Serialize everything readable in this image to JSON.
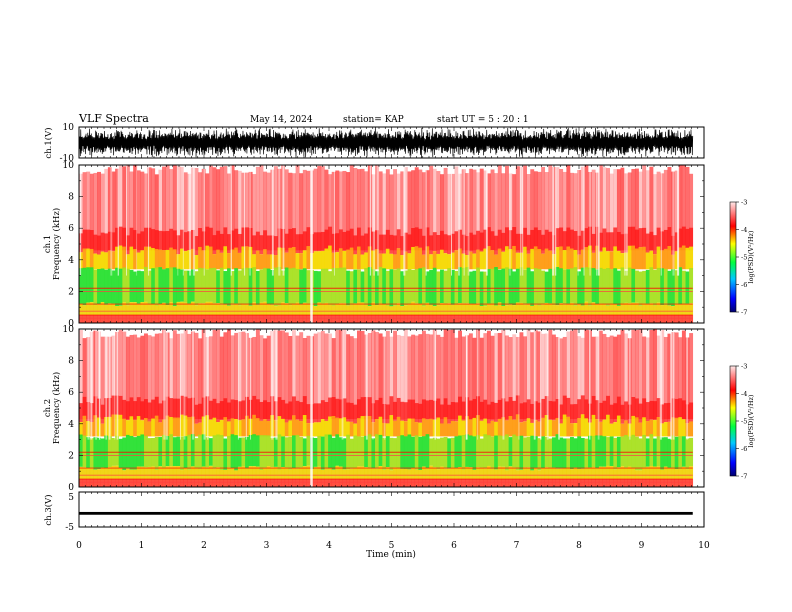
{
  "header": {
    "title": "VLF Spectra",
    "date": "May 14, 2024",
    "station": "station= KAP",
    "start": "start  UT  =   5  : 20 : 1"
  },
  "chart_data": [
    {
      "type": "line",
      "name": "ch1-waveform",
      "ylabel": "ch.1(V)",
      "ylim": [
        -10,
        10
      ],
      "yticks": [
        "10",
        "-10"
      ],
      "xlim": [
        0,
        10
      ]
    },
    {
      "type": "heatmap",
      "name": "ch1-spectrogram",
      "ylabel_top": "ch.1",
      "ylabel": "Frequency  (kHz)",
      "ylim": [
        0,
        10
      ],
      "yticks": [
        "0",
        "2",
        "4",
        "6",
        "8",
        "10"
      ],
      "xlim": [
        0,
        10
      ],
      "data_end_min": 9.82,
      "colorbar": {
        "label": "log(PSD)(V²/Hz)",
        "range": [
          -7,
          -3
        ],
        "ticks": [
          "-3",
          "-4",
          "-5",
          "-6",
          "-7"
        ]
      },
      "bands_khz": {
        "green_core": [
          1.2,
          3.4
        ],
        "yellow_edge": [
          3.4,
          4.6
        ],
        "red_upper": [
          4.6,
          10
        ]
      }
    },
    {
      "type": "heatmap",
      "name": "ch2-spectrogram",
      "ylabel_top": "ch.2",
      "ylabel": "Frequency  (kHz)",
      "ylim": [
        0,
        10
      ],
      "yticks": [
        "0",
        "2",
        "4",
        "6",
        "8",
        "10"
      ],
      "xlim": [
        0,
        10
      ],
      "data_end_min": 9.82,
      "colorbar": {
        "label": "log(PSD)(V²/Hz)",
        "range": [
          -7,
          -3
        ],
        "ticks": [
          "-3",
          "-4",
          "-5",
          "-6",
          "-7"
        ]
      },
      "bands_khz": {
        "green_core": [
          1.2,
          3.2
        ],
        "yellow_edge": [
          3.2,
          4.3
        ],
        "red_upper": [
          4.3,
          10
        ]
      }
    },
    {
      "type": "line",
      "name": "ch3-waveform",
      "ylabel": "ch.3(V)",
      "ylim": [
        -5,
        5
      ],
      "yticks": [
        "5",
        "-5"
      ],
      "xlim": [
        0,
        10
      ],
      "level_v": [
        -1.5,
        -0.7
      ]
    }
  ],
  "xaxis": {
    "label": "Time  (min)",
    "ticks": [
      "0",
      "1",
      "2",
      "3",
      "4",
      "5",
      "6",
      "7",
      "8",
      "9",
      "10"
    ]
  },
  "colors": {
    "red": "#ff2020",
    "yellow": "#f0e800",
    "green": "#20e030",
    "blue": "#0000d0",
    "black": "#000000"
  }
}
